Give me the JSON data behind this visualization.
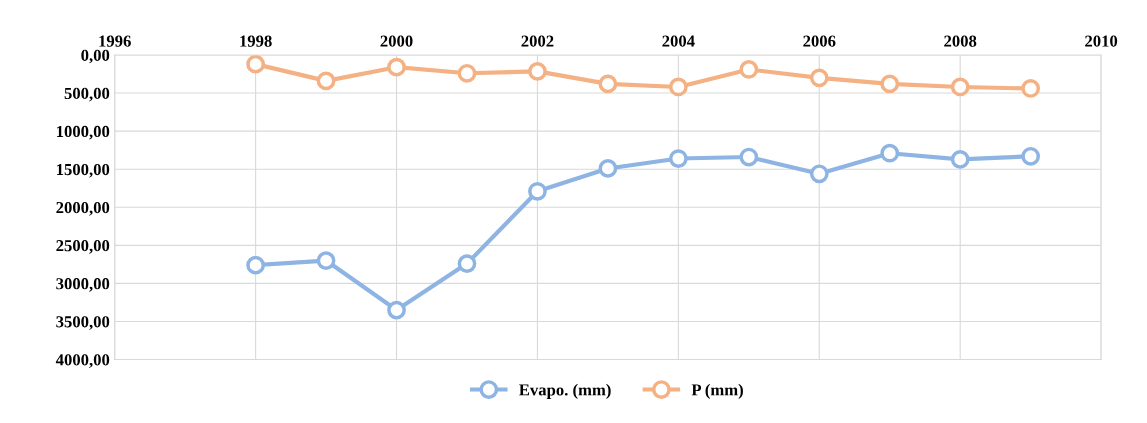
{
  "chart_data": {
    "type": "line",
    "x": [
      1998,
      1999,
      2000,
      2001,
      2002,
      2003,
      2004,
      2005,
      2006,
      2007,
      2008,
      2009
    ],
    "series": [
      {
        "name": "Evapo. (mm)",
        "color": "#8eb4e3",
        "values": [
          2760,
          2700,
          3350,
          2740,
          1790,
          1490,
          1360,
          1340,
          1560,
          1290,
          1370,
          1330
        ]
      },
      {
        "name": "P (mm)",
        "color": "#f4b183",
        "values": [
          120,
          340,
          160,
          240,
          215,
          380,
          420,
          190,
          300,
          380,
          420,
          440
        ]
      }
    ],
    "xlim": [
      1996,
      2010
    ],
    "xticks": [
      1996,
      1998,
      2000,
      2002,
      2004,
      2006,
      2008,
      2010
    ],
    "ylim": [
      4000,
      0
    ],
    "yticks": [
      {
        "value": 0,
        "label": "0,00"
      },
      {
        "value": 500,
        "label": "500,00"
      },
      {
        "value": 1000,
        "label": "1000,00"
      },
      {
        "value": 1500,
        "label": "1500,00"
      },
      {
        "value": 2000,
        "label": "2000,00"
      },
      {
        "value": 2500,
        "label": "2500,00"
      },
      {
        "value": 3000,
        "label": "3000,00"
      },
      {
        "value": 3500,
        "label": "3500,00"
      },
      {
        "value": 4000,
        "label": "4000,00"
      }
    ],
    "grid": true,
    "legend": "bottom",
    "marker": "circle",
    "line_style": "solid"
  }
}
